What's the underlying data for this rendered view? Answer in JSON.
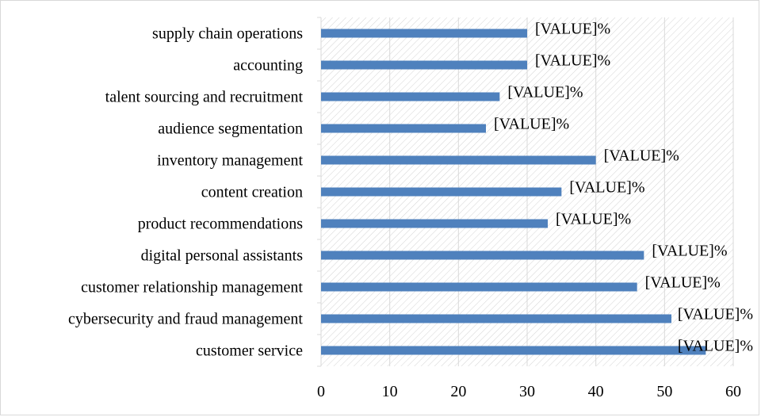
{
  "chart_data": {
    "type": "bar",
    "orientation": "horizontal",
    "categories": [
      "supply chain operations",
      "accounting",
      "talent sourcing and recruitment",
      "audience segmentation",
      "inventory management",
      "content creation",
      "product recommendations",
      "digital personal assistants",
      "customer relationship management",
      "cybersecurity and fraud management",
      "customer service"
    ],
    "values": [
      30,
      30,
      26,
      24,
      40,
      35,
      33,
      47,
      46,
      51,
      56
    ],
    "data_labels": [
      "[VALUE]%",
      "[VALUE]%",
      "[VALUE]%",
      "[VALUE]%",
      "[VALUE]%",
      "[VALUE]%",
      "[VALUE]%",
      "[VALUE]%",
      "[VALUE]%",
      "[VALUE]%",
      "[VALUE]%"
    ],
    "x_ticks": [
      "0",
      "10",
      "20",
      "30",
      "40",
      "50",
      "60"
    ],
    "xlim": [
      0,
      60
    ],
    "grid": "vertical",
    "plot_background": "diagonal-hatch",
    "bar_color": "#4f81bd",
    "title": "",
    "xlabel": "",
    "ylabel": ""
  }
}
